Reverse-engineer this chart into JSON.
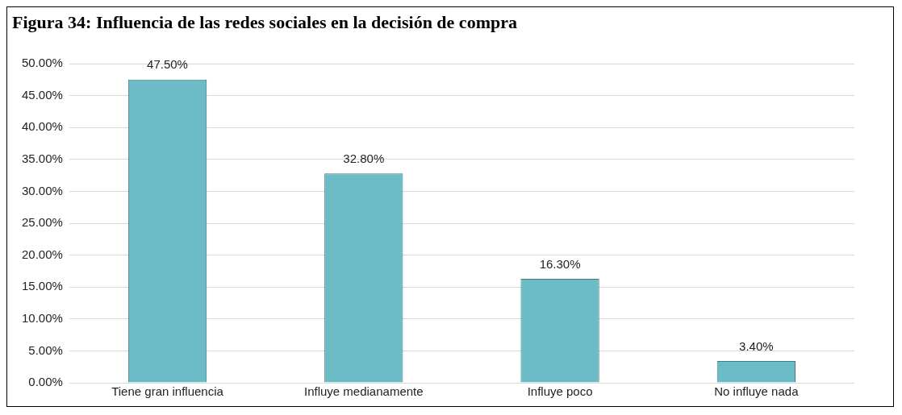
{
  "chart_data": {
    "type": "bar",
    "title": "Figura 34: Influencia de las redes sociales en la decisión de compra",
    "categories": [
      "Tiene gran influencia",
      "Influye medianamente",
      "Influye poco",
      "No influye nada"
    ],
    "values": [
      47.5,
      32.8,
      16.3,
      3.4
    ],
    "value_labels": [
      "47.50%",
      "32.80%",
      "16.30%",
      "3.40%"
    ],
    "color": "#6bbcc6",
    "ylim": [
      0,
      50
    ],
    "yticks": [
      {
        "value": 0,
        "label": "0.00%"
      },
      {
        "value": 5,
        "label": "5.00%"
      },
      {
        "value": 10,
        "label": "10.00%"
      },
      {
        "value": 15,
        "label": "15.00%"
      },
      {
        "value": 20,
        "label": "20.00%"
      },
      {
        "value": 25,
        "label": "25.00%"
      },
      {
        "value": 30,
        "label": "30.00%"
      },
      {
        "value": 35,
        "label": "35.00%"
      },
      {
        "value": 40,
        "label": "40.00%"
      },
      {
        "value": 45,
        "label": "45.00%"
      },
      {
        "value": 50,
        "label": "50.00%"
      }
    ],
    "grid": "y"
  }
}
